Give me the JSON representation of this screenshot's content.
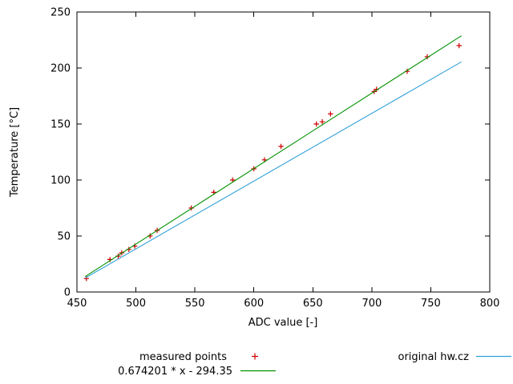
{
  "chart_data": {
    "type": "scatter",
    "title": "",
    "xlabel": "ADC value [-]",
    "ylabel": "Temperature [°C]",
    "xlim": [
      450,
      800
    ],
    "ylim": [
      0,
      250
    ],
    "xticks": [
      450,
      500,
      550,
      600,
      650,
      700,
      750,
      800
    ],
    "yticks": [
      0,
      50,
      100,
      150,
      200,
      250
    ],
    "grid": false,
    "legend_position": "below-plot",
    "series": [
      {
        "name": "measured points",
        "type": "points",
        "marker": "plus",
        "color": "#cc0000",
        "points": [
          [
            458,
            12
          ],
          [
            478,
            29
          ],
          [
            485,
            32
          ],
          [
            488,
            35
          ],
          [
            494,
            38
          ],
          [
            499,
            41
          ],
          [
            512,
            50
          ],
          [
            518,
            55
          ],
          [
            547,
            75
          ],
          [
            566,
            89
          ],
          [
            582,
            100
          ],
          [
            600,
            110
          ],
          [
            609,
            118
          ],
          [
            623,
            130
          ],
          [
            653,
            150
          ],
          [
            658,
            152
          ],
          [
            665,
            159
          ],
          [
            702,
            179
          ],
          [
            704,
            181
          ],
          [
            730,
            197
          ],
          [
            747,
            210
          ],
          [
            774,
            220
          ]
        ]
      },
      {
        "name": "0.674201 * x - 294.35",
        "type": "line",
        "color": "#009100",
        "points": [
          [
            457,
            13.8
          ],
          [
            776,
            228.8
          ]
        ]
      },
      {
        "name": "original hw.cz",
        "type": "line",
        "color": "#2fa0d8",
        "points": [
          [
            457,
            12.5
          ],
          [
            776,
            205.5
          ]
        ]
      }
    ]
  },
  "legend": {
    "measured_label": "measured points",
    "fit_label": "0.674201 * x - 294.35",
    "original_label": "original hw.cz"
  }
}
